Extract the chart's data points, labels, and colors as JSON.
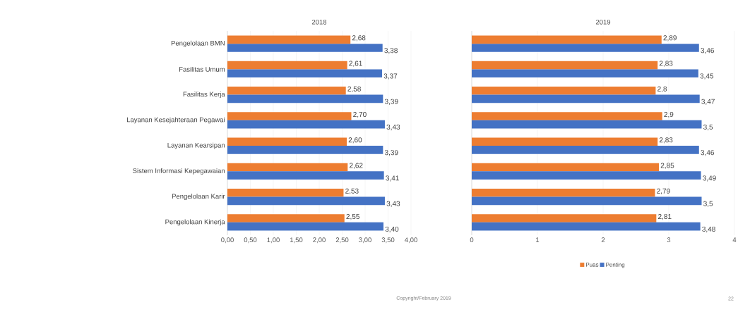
{
  "chart_data": [
    {
      "type": "bar",
      "orientation": "horizontal",
      "title": "2018",
      "categories": [
        "Pengelolaan BMN",
        "Fasilitas Umum",
        "Fasilitas Kerja",
        "Layanan Kesejahteraan Pegawai",
        "Layanan Kearsipan",
        "Sistem Informasi Kepegawaian",
        "Pengelolaan Karir",
        "Pengelolaan Kinerja"
      ],
      "series": [
        {
          "color": "#ed7d31",
          "values": [
            2.68,
            2.61,
            2.58,
            2.7,
            2.6,
            2.62,
            2.53,
            2.55
          ],
          "value_labels": [
            "2,68",
            "2,61",
            "2,58",
            "2,70",
            "2,60",
            "2,62",
            "2,53",
            "2,55"
          ]
        },
        {
          "color": "#4472c4",
          "values": [
            3.38,
            3.37,
            3.39,
            3.43,
            3.39,
            3.41,
            3.43,
            3.4
          ],
          "value_labels": [
            "3,38",
            "3,37",
            "3,39",
            "3,43",
            "3,39",
            "3,41",
            "3,43",
            "3,40"
          ]
        }
      ],
      "xlim": [
        0,
        4
      ],
      "xticks": [
        {
          "value": 0,
          "label": "0,00"
        },
        {
          "value": 0.5,
          "label": "0,50"
        },
        {
          "value": 1,
          "label": "1,00"
        },
        {
          "value": 1.5,
          "label": "1,50"
        },
        {
          "value": 2,
          "label": "2,00"
        },
        {
          "value": 2.5,
          "label": "2,50"
        },
        {
          "value": 3,
          "label": "3,00"
        },
        {
          "value": 3.5,
          "label": "3,50"
        },
        {
          "value": 4,
          "label": "4,00"
        }
      ],
      "grid": "x",
      "legend": false
    },
    {
      "type": "bar",
      "orientation": "horizontal",
      "title": "2019",
      "categories": [
        null,
        null,
        null,
        null,
        null,
        null,
        null,
        null
      ],
      "series": [
        {
          "name": "Puas",
          "color": "#ed7d31",
          "values": [
            2.89,
            2.83,
            2.8,
            2.9,
            2.83,
            2.85,
            2.79,
            2.81
          ],
          "value_labels": [
            "2,89",
            "2,83",
            "2,8",
            "2,9",
            "2,83",
            "2,85",
            "2,79",
            "2,81"
          ]
        },
        {
          "name": "Penting",
          "color": "#4472c4",
          "values": [
            3.46,
            3.45,
            3.47,
            3.5,
            3.46,
            3.49,
            3.5,
            3.48
          ],
          "value_labels": [
            "3,46",
            "3,45",
            "3,47",
            "3,5",
            "3,46",
            "3,49",
            "3,5",
            "3,48"
          ]
        }
      ],
      "xlim": [
        0,
        4
      ],
      "xticks": [
        0,
        1,
        2,
        3,
        4
      ],
      "grid": "x",
      "legend": "bottom",
      "tick_labels": "x",
      "annotations": [
        "Copyright/February 2019",
        "22"
      ]
    }
  ]
}
